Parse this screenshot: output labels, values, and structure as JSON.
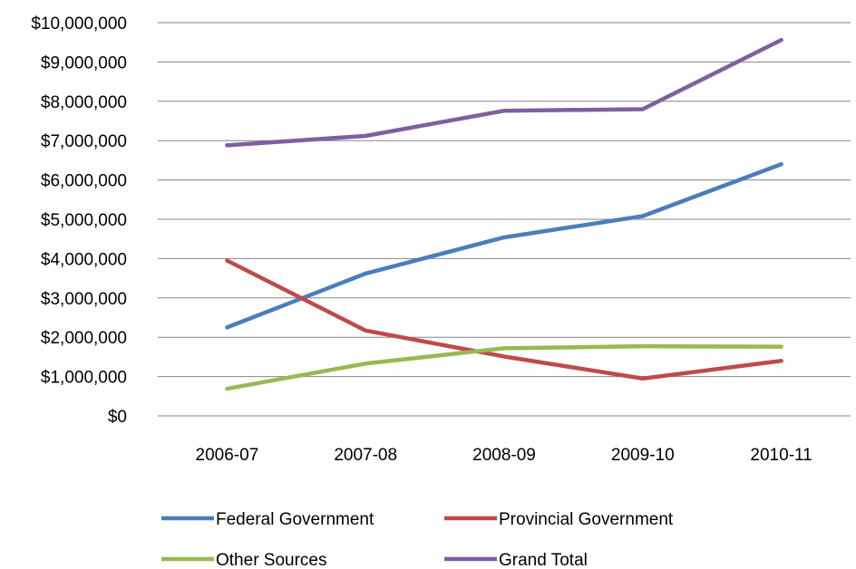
{
  "chart_data": {
    "type": "line",
    "categories": [
      "2006-07",
      "2007-08",
      "2008-09",
      "2009-10",
      "2010-11"
    ],
    "ylim": [
      0,
      10000000
    ],
    "y_ticks": [
      "$0",
      "$1,000,000",
      "$2,000,000",
      "$3,000,000",
      "$4,000,000",
      "$5,000,000",
      "$6,000,000",
      "$7,000,000",
      "$8,000,000",
      "$9,000,000",
      "$10,000,000"
    ],
    "y_tick_values": [
      0,
      1000000,
      2000000,
      3000000,
      4000000,
      5000000,
      6000000,
      7000000,
      8000000,
      9000000,
      10000000
    ],
    "grid": true,
    "legend_position": "bottom",
    "series": [
      {
        "name": "Federal Government",
        "color": "#4a7ebb",
        "values": [
          2250000,
          3620000,
          4540000,
          5080000,
          6400000
        ]
      },
      {
        "name": "Provincial Government",
        "color": "#be4b48",
        "values": [
          3950000,
          2170000,
          1510000,
          950000,
          1400000
        ]
      },
      {
        "name": "Other Sources",
        "color": "#98b954",
        "values": [
          690000,
          1330000,
          1720000,
          1770000,
          1760000
        ]
      },
      {
        "name": "Grand Total",
        "color": "#7d60a0",
        "values": [
          6880000,
          7120000,
          7760000,
          7800000,
          9560000
        ]
      }
    ]
  }
}
